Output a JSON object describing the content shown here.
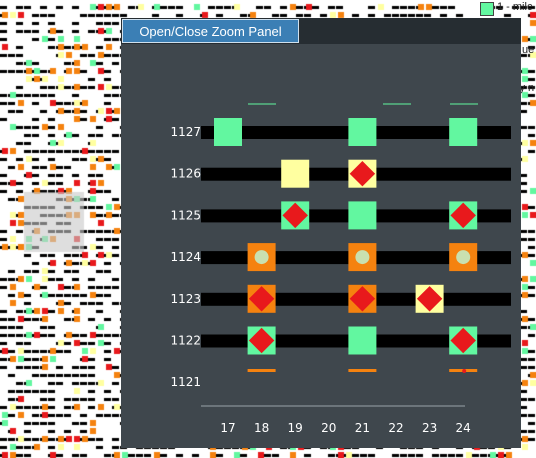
{
  "zoom_button_label": "Open/Close Zoom Panel",
  "legend": {
    "label": "1 - milc",
    "color": "#62f7a0"
  },
  "edge_fragments": [
    "ue",
    "ly n"
  ],
  "colors": {
    "panel_bg": "#3f474d",
    "bar": "#000000",
    "green": "#62f7a0",
    "yellow": "#ffffa0",
    "orange": "#f5820f",
    "red": "#e8191c",
    "circle": "#c9e0b0"
  },
  "chart_data": {
    "type": "scatter",
    "title": "",
    "xlabel": "",
    "ylabel": "",
    "x_ticks": [
      17,
      18,
      19,
      20,
      21,
      22,
      23,
      24
    ],
    "y_ticks": [
      1127,
      1126,
      1125,
      1124,
      1123,
      1122,
      1121
    ],
    "rows": [
      1127,
      1126,
      1125,
      1124,
      1123,
      1122
    ],
    "cells": [
      {
        "x": 17,
        "y": 1127,
        "fill": "green",
        "marker": "none"
      },
      {
        "x": 21,
        "y": 1127,
        "fill": "green",
        "marker": "none"
      },
      {
        "x": 24,
        "y": 1127,
        "fill": "green",
        "marker": "none"
      },
      {
        "x": 19,
        "y": 1126,
        "fill": "yellow",
        "marker": "none"
      },
      {
        "x": 21,
        "y": 1126,
        "fill": "yellow",
        "marker": "diamond"
      },
      {
        "x": 19,
        "y": 1125,
        "fill": "green",
        "marker": "diamond"
      },
      {
        "x": 21,
        "y": 1125,
        "fill": "green",
        "marker": "none"
      },
      {
        "x": 24,
        "y": 1125,
        "fill": "green",
        "marker": "diamond"
      },
      {
        "x": 18,
        "y": 1124,
        "fill": "orange",
        "marker": "circle"
      },
      {
        "x": 21,
        "y": 1124,
        "fill": "orange",
        "marker": "circle"
      },
      {
        "x": 24,
        "y": 1124,
        "fill": "orange",
        "marker": "circle"
      },
      {
        "x": 18,
        "y": 1123,
        "fill": "orange",
        "marker": "diamond"
      },
      {
        "x": 21,
        "y": 1123,
        "fill": "orange",
        "marker": "diamond"
      },
      {
        "x": 23,
        "y": 1123,
        "fill": "yellow",
        "marker": "diamond"
      },
      {
        "x": 18,
        "y": 1122,
        "fill": "green",
        "marker": "diamond"
      },
      {
        "x": 21,
        "y": 1122,
        "fill": "green",
        "marker": "none"
      },
      {
        "x": 24,
        "y": 1122,
        "fill": "green",
        "marker": "diamond"
      }
    ]
  }
}
